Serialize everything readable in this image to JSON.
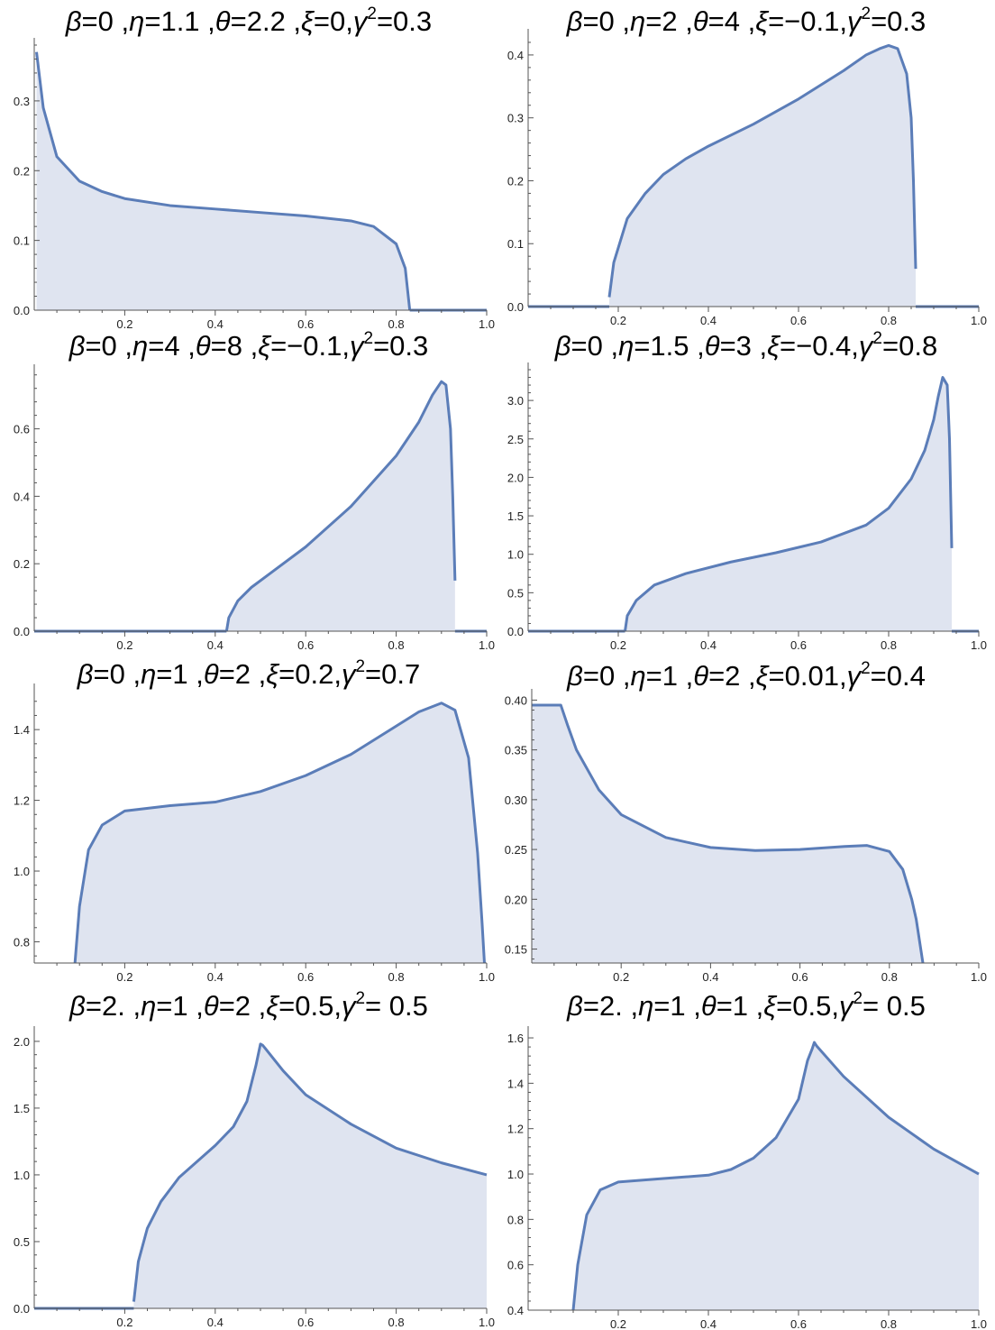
{
  "chart_data": [
    {
      "type": "area",
      "title": "β=0 ,η=1.1 ,θ=2.2 ,ξ=0,γ²=0.3",
      "title_parts": {
        "greek": [
          "β",
          "η",
          "θ",
          "ξ",
          "γ"
        ],
        "values": [
          "0 ,",
          "1.1 ,",
          "2.2 ,",
          "0,",
          "=0.3"
        ]
      },
      "xlim": [
        0.0,
        1.0
      ],
      "ylim": [
        0.0,
        0.38
      ],
      "xticks": [
        0.2,
        0.4,
        0.6,
        0.8,
        1.0
      ],
      "xtick_labels": [
        "0.2",
        "0.4",
        "0.6",
        "0.8",
        "1.0"
      ],
      "yticks": [
        0.0,
        0.1,
        0.2,
        0.3
      ],
      "ytick_labels": [
        "0.0",
        "0.1",
        "0.2",
        "0.3"
      ],
      "support": [
        0.005,
        0.83
      ],
      "series": [
        {
          "x": [
            0.005,
            0.02,
            0.05,
            0.1,
            0.15,
            0.2,
            0.3,
            0.4,
            0.5,
            0.6,
            0.7,
            0.75,
            0.8,
            0.82,
            0.83
          ],
          "y": [
            0.37,
            0.29,
            0.22,
            0.185,
            0.17,
            0.16,
            0.15,
            0.145,
            0.14,
            0.135,
            0.128,
            0.12,
            0.095,
            0.06,
            0.0
          ]
        }
      ],
      "color": "#5b7db8",
      "fill": "#dfe4f0"
    },
    {
      "type": "area",
      "title": "β=0 ,η=2 ,θ=4 ,ξ=−0.1,γ²=0.3",
      "xlim": [
        0.0,
        1.0
      ],
      "ylim": [
        0.0,
        0.43
      ],
      "xticks": [
        0.2,
        0.4,
        0.6,
        0.8,
        1.0
      ],
      "xtick_labels": [
        "0.2",
        "0.4",
        "0.6",
        "0.8",
        "1.0"
      ],
      "yticks": [
        0.0,
        0.1,
        0.2,
        0.3,
        0.4
      ],
      "ytick_labels": [
        "0.0",
        "0.1",
        "0.2",
        "0.3",
        "0.4"
      ],
      "support": [
        0.18,
        0.86
      ],
      "series": [
        {
          "x": [
            0.18,
            0.19,
            0.22,
            0.26,
            0.3,
            0.35,
            0.4,
            0.5,
            0.6,
            0.7,
            0.75,
            0.78,
            0.8,
            0.82,
            0.84,
            0.85,
            0.855,
            0.86
          ],
          "y": [
            0.015,
            0.07,
            0.14,
            0.18,
            0.21,
            0.235,
            0.255,
            0.29,
            0.33,
            0.375,
            0.4,
            0.41,
            0.415,
            0.41,
            0.37,
            0.3,
            0.2,
            0.06
          ]
        }
      ],
      "color": "#5b7db8",
      "fill": "#dfe4f0"
    },
    {
      "type": "area",
      "title": "β=0 ,η=4 ,θ=8 ,ξ=−0.1,γ²=0.3",
      "xlim": [
        0.0,
        1.0
      ],
      "ylim": [
        0.0,
        0.77
      ],
      "xticks": [
        0.2,
        0.4,
        0.6,
        0.8,
        1.0
      ],
      "xtick_labels": [
        "0.2",
        "0.4",
        "0.6",
        "0.8",
        "1.0"
      ],
      "yticks": [
        0.0,
        0.2,
        0.4,
        0.6
      ],
      "ytick_labels": [
        "0.0",
        "0.2",
        "0.4",
        "0.6"
      ],
      "support": [
        0.425,
        0.93
      ],
      "series": [
        {
          "x": [
            0.425,
            0.43,
            0.45,
            0.48,
            0.52,
            0.6,
            0.7,
            0.8,
            0.85,
            0.88,
            0.9,
            0.91,
            0.92,
            0.925,
            0.93
          ],
          "y": [
            0.0,
            0.04,
            0.09,
            0.13,
            0.17,
            0.25,
            0.37,
            0.52,
            0.62,
            0.7,
            0.74,
            0.73,
            0.6,
            0.4,
            0.15
          ]
        }
      ],
      "color": "#5b7db8",
      "fill": "#dfe4f0"
    },
    {
      "type": "area",
      "title": "β=0 ,η=1.5 ,θ=3 ,ξ=−0.4,γ²=0.8",
      "xlim": [
        0.0,
        1.0
      ],
      "ylim": [
        0.0,
        3.4
      ],
      "xticks": [
        0.2,
        0.4,
        0.6,
        0.8,
        1.0
      ],
      "xtick_labels": [
        "0.2",
        "0.4",
        "0.6",
        "0.8",
        "1.0"
      ],
      "yticks": [
        0.0,
        0.5,
        1.0,
        1.5,
        2.0,
        2.5,
        3.0
      ],
      "ytick_labels": [
        "0.0",
        "0.5",
        "1.0",
        "1.5",
        "2.0",
        "2.5",
        "3.0"
      ],
      "support": [
        0.215,
        0.94
      ],
      "series": [
        {
          "x": [
            0.215,
            0.22,
            0.24,
            0.28,
            0.35,
            0.45,
            0.55,
            0.65,
            0.75,
            0.8,
            0.85,
            0.88,
            0.9,
            0.91,
            0.92,
            0.93,
            0.935,
            0.94
          ],
          "y": [
            0.0,
            0.2,
            0.4,
            0.6,
            0.75,
            0.9,
            1.02,
            1.16,
            1.38,
            1.6,
            1.98,
            2.35,
            2.75,
            3.05,
            3.3,
            3.2,
            2.5,
            1.08
          ]
        }
      ],
      "color": "#5b7db8",
      "fill": "#dfe4f0"
    },
    {
      "type": "area",
      "title": "β=0 ,η=1 ,θ=2 ,ξ=0.2,γ²=0.7",
      "xlim": [
        0.0,
        1.0
      ],
      "ylim": [
        0.74,
        1.51
      ],
      "xticks": [
        0.2,
        0.4,
        0.6,
        0.8,
        1.0
      ],
      "xtick_labels": [
        "0.2",
        "0.4",
        "0.6",
        "0.8",
        "1.0"
      ],
      "yticks": [
        0.8,
        1.0,
        1.2,
        1.4
      ],
      "ytick_labels": [
        "0.8",
        "1.0",
        "1.2",
        "1.4"
      ],
      "support": [
        0.09,
        0.995
      ],
      "series": [
        {
          "x": [
            0.09,
            0.1,
            0.12,
            0.15,
            0.2,
            0.3,
            0.4,
            0.5,
            0.6,
            0.7,
            0.8,
            0.85,
            0.9,
            0.93,
            0.96,
            0.98,
            0.99,
            0.995
          ],
          "y": [
            0.74,
            0.9,
            1.06,
            1.13,
            1.17,
            1.185,
            1.195,
            1.225,
            1.27,
            1.33,
            1.41,
            1.45,
            1.475,
            1.455,
            1.32,
            1.05,
            0.85,
            0.74
          ]
        }
      ],
      "color": "#5b7db8",
      "fill": "#dfe4f0"
    },
    {
      "type": "area",
      "title": "β=0 ,η=1 ,θ=2 ,ξ=0.01,γ²=0.4",
      "xlim": [
        0.0,
        1.0
      ],
      "ylim": [
        0.136,
        0.404
      ],
      "xticks": [
        0.2,
        0.4,
        0.6,
        0.8,
        1.0
      ],
      "xtick_labels": [
        "0.2",
        "0.4",
        "0.6",
        "0.8",
        "1.0"
      ],
      "yticks": [
        0.15,
        0.2,
        0.25,
        0.3,
        0.35,
        0.4
      ],
      "ytick_labels": [
        "0.15",
        "0.20",
        "0.25",
        "0.30",
        "0.35",
        "0.40"
      ],
      "support": [
        0.0,
        0.875
      ],
      "series": [
        {
          "x": [
            0.0,
            0.065,
            0.08,
            0.1,
            0.15,
            0.2,
            0.3,
            0.4,
            0.5,
            0.6,
            0.7,
            0.75,
            0.8,
            0.83,
            0.85,
            0.86,
            0.875
          ],
          "y": [
            0.395,
            0.395,
            0.375,
            0.35,
            0.31,
            0.285,
            0.262,
            0.252,
            0.249,
            0.25,
            0.253,
            0.254,
            0.248,
            0.23,
            0.2,
            0.18,
            0.136
          ]
        }
      ],
      "color": "#5b7db8",
      "fill": "#dfe4f0"
    },
    {
      "type": "area",
      "title": "β=2. ,η=1 ,θ=2 ,ξ=0.5,γ²= 0.5",
      "xlim": [
        0.0,
        1.0
      ],
      "ylim": [
        0.0,
        2.06
      ],
      "xticks": [
        0.2,
        0.4,
        0.6,
        0.8,
        1.0
      ],
      "xtick_labels": [
        "0.2",
        "0.4",
        "0.6",
        "0.8",
        "1.0"
      ],
      "yticks": [
        0.0,
        0.5,
        1.0,
        1.5,
        2.0
      ],
      "ytick_labels": [
        "0.0",
        "0.5",
        "1.0",
        "1.5",
        "2.0"
      ],
      "support": [
        0.22,
        1.0
      ],
      "series": [
        {
          "x": [
            0.22,
            0.23,
            0.25,
            0.28,
            0.32,
            0.36,
            0.4,
            0.44,
            0.47,
            0.49,
            0.5,
            0.505,
            0.51,
            0.55,
            0.6,
            0.7,
            0.8,
            0.9,
            1.0
          ],
          "y": [
            0.05,
            0.35,
            0.6,
            0.8,
            0.98,
            1.1,
            1.22,
            1.36,
            1.55,
            1.82,
            1.98,
            1.97,
            1.95,
            1.78,
            1.6,
            1.38,
            1.2,
            1.09,
            1.0
          ]
        }
      ],
      "color": "#5b7db8",
      "fill": "#dfe4f0"
    },
    {
      "type": "area",
      "title": "β=2. ,η=1 ,θ=1 ,ξ=0.5,γ²= 0.5",
      "xlim": [
        0.0,
        1.0
      ],
      "ylim": [
        0.4,
        1.62
      ],
      "xticks": [
        0.2,
        0.4,
        0.6,
        0.8,
        1.0
      ],
      "xtick_labels": [
        "0.2",
        "0.4",
        "0.6",
        "0.8",
        "1.0"
      ],
      "yticks": [
        0.4,
        0.6,
        0.8,
        1.0,
        1.2,
        1.4,
        1.6
      ],
      "ytick_labels": [
        "0.4",
        "0.6",
        "0.8",
        "1.0",
        "1.2",
        "1.4",
        "1.6"
      ],
      "support": [
        0.1,
        1.0
      ],
      "series": [
        {
          "x": [
            0.1,
            0.11,
            0.13,
            0.16,
            0.2,
            0.3,
            0.4,
            0.45,
            0.5,
            0.55,
            0.6,
            0.62,
            0.63,
            0.635,
            0.64,
            0.7,
            0.8,
            0.9,
            1.0
          ],
          "y": [
            0.4,
            0.6,
            0.82,
            0.93,
            0.965,
            0.98,
            0.995,
            1.02,
            1.07,
            1.16,
            1.33,
            1.5,
            1.55,
            1.58,
            1.565,
            1.43,
            1.25,
            1.11,
            1.0
          ]
        }
      ],
      "color": "#5b7db8",
      "fill": "#dfe4f0"
    }
  ]
}
